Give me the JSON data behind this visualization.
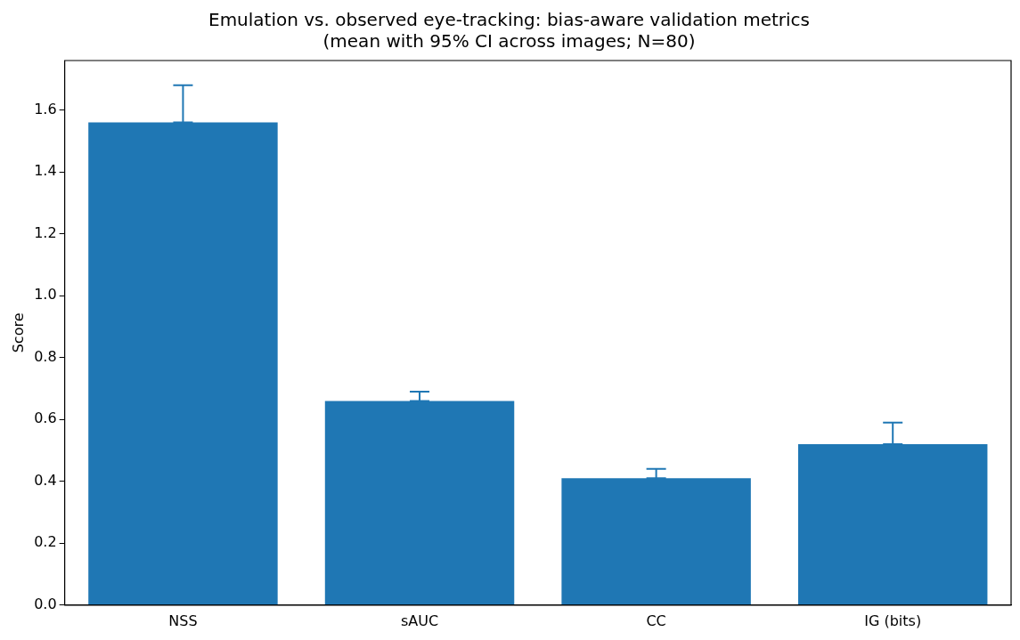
{
  "chart_data": {
    "type": "bar",
    "title": "Emulation vs. observed eye-tracking: bias-aware validation metrics\n(mean with 95% CI across images; N=80)",
    "ylabel": "Score",
    "categories": [
      "NSS",
      "sAUC",
      "CC",
      "IG (bits)"
    ],
    "values": [
      1.56,
      0.66,
      0.41,
      0.52
    ],
    "errors": [
      [
        1.56,
        1.68
      ],
      [
        0.66,
        0.69
      ],
      [
        0.41,
        0.44
      ],
      [
        0.52,
        0.59
      ]
    ],
    "color": "#1f77b4",
    "ylim": [
      0,
      1.76
    ],
    "yticks": [
      {
        "value": 0,
        "label": "0.0"
      },
      0.2,
      0.4,
      0.6,
      0.8,
      {
        "value": 1,
        "label": "1.0"
      },
      1.2,
      1.4,
      1.6
    ],
    "grid": false,
    "legend": false
  }
}
